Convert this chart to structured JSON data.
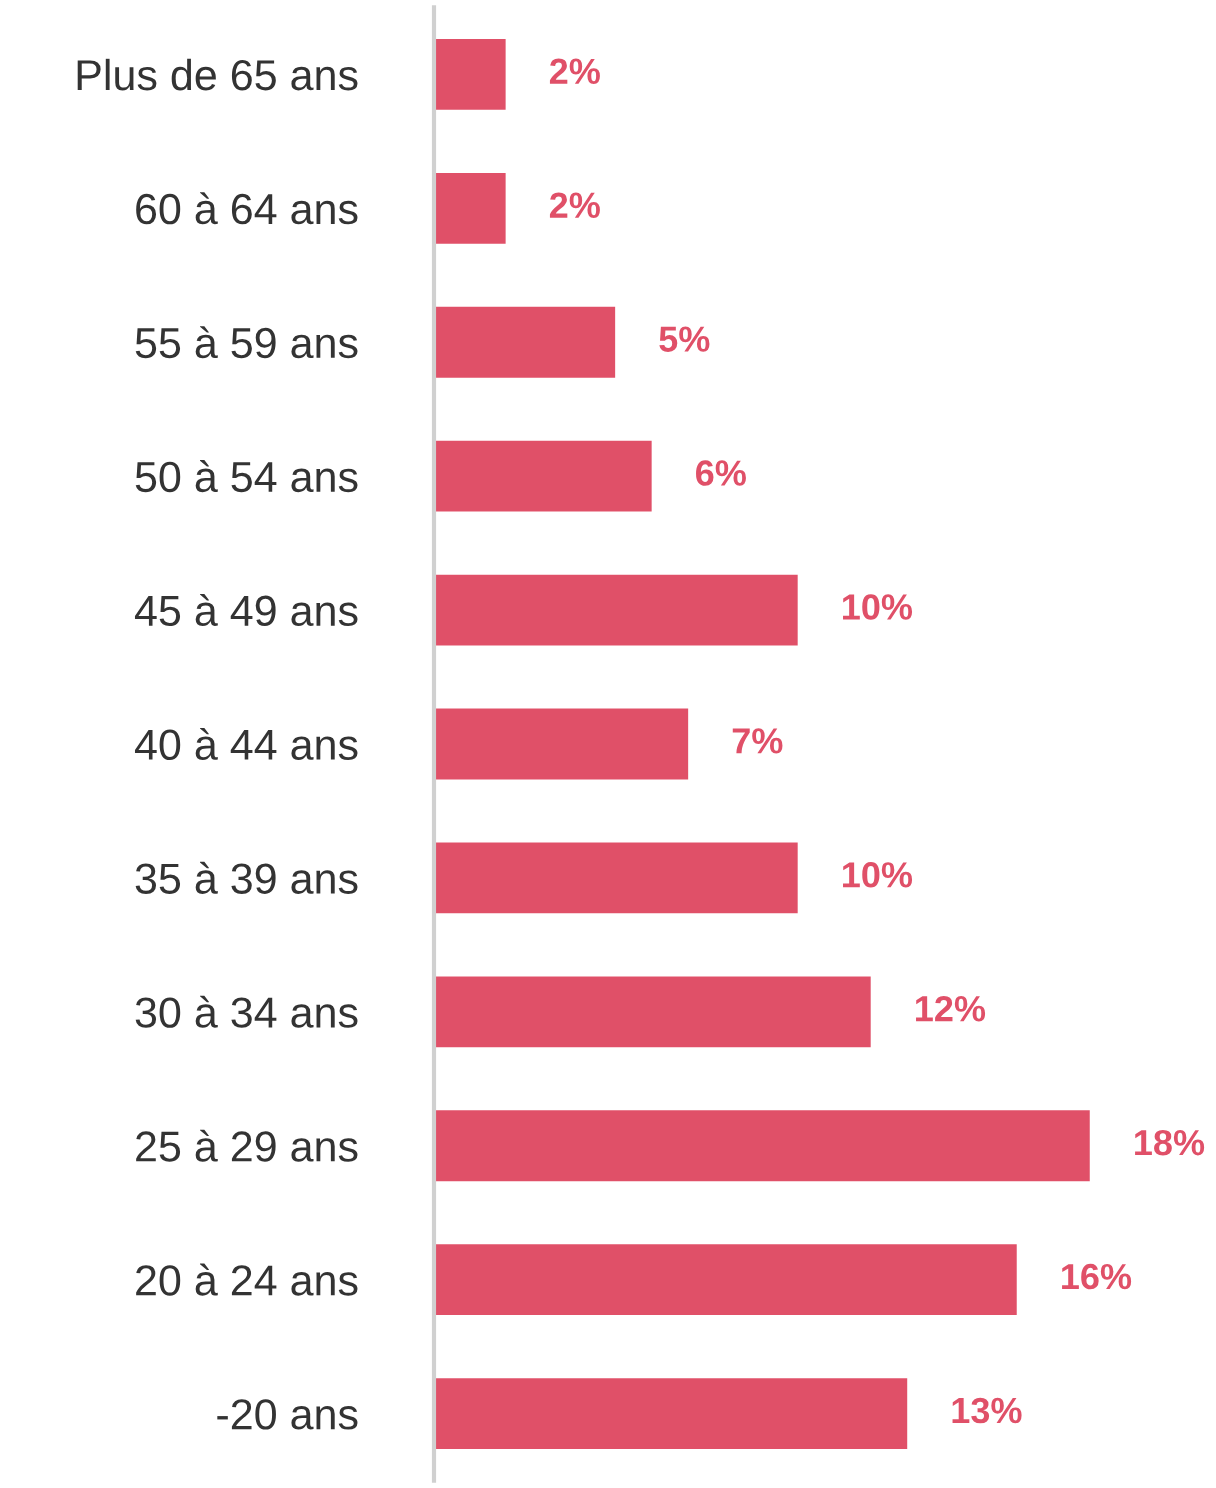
{
  "chart_data": {
    "type": "bar",
    "orientation": "horizontal",
    "categories": [
      "Plus de 65 ans",
      "60 à 64 ans",
      "55 à 59 ans",
      "50 à 54 ans",
      "45 à 49 ans",
      "40 à 44 ans",
      "35 à 39 ans",
      "30 à 34 ans",
      "25 à 29 ans",
      "20 à 24 ans",
      "-20 ans"
    ],
    "values": [
      2,
      2,
      5,
      6,
      10,
      7,
      10,
      12,
      18,
      16,
      13
    ],
    "value_labels": [
      "2%",
      "2%",
      "5%",
      "6%",
      "10%",
      "7%",
      "10%",
      "12%",
      "18%",
      "16%",
      "13%"
    ],
    "color": "#e05068",
    "grid": false,
    "legend": false
  }
}
